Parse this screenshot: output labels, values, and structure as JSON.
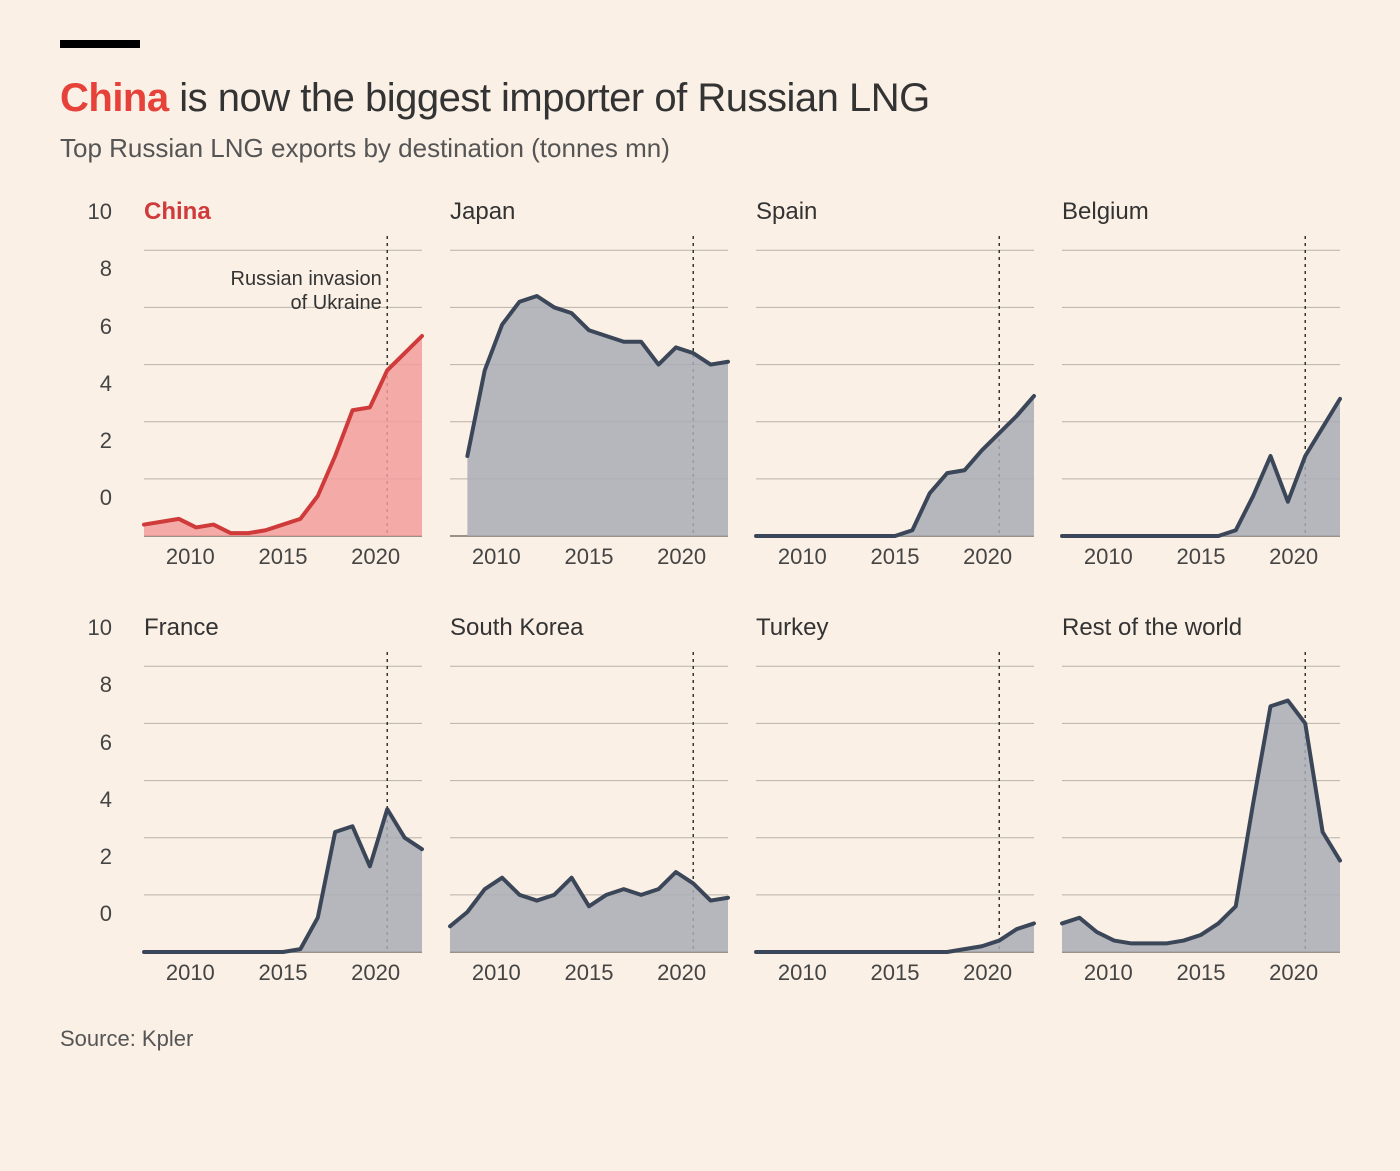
{
  "background_color": "#faf0e6",
  "topbar_color": "#000000",
  "title_highlight": "China",
  "title_rest": " is now the biggest importer of Russian LNG",
  "title_highlight_color": "#e6423a",
  "title_fontsize": 40,
  "subtitle": "Top Russian LNG exports by destination (tonnes mn)",
  "subtitle_fontsize": 26,
  "source_label": "Source: Kpler",
  "source_fontsize": 22,
  "axes": {
    "x_start": 2008,
    "x_end": 2024,
    "x_ticks": [
      2010,
      2015,
      2020
    ],
    "y_min": 0,
    "y_max": 10.5,
    "y_ticks": [
      0,
      2,
      4,
      6,
      8,
      10
    ],
    "grid_color": "#b8b2a8",
    "baseline_color": "#7a736a",
    "refline_year": 2022,
    "refline_color": "#333333"
  },
  "series_stroke_default": "#3b4658",
  "series_fill_default": "#a9adb5",
  "series_stroke_highlight": "#cf3a3a",
  "series_fill_highlight": "#f29e9b",
  "line_width": 4,
  "annotation": {
    "line1": "Russian invasion",
    "line2": "of Ukraine",
    "target_year": 2022
  },
  "panels": [
    {
      "name": "China",
      "highlight": true,
      "x": [
        2008,
        2009,
        2010,
        2011,
        2012,
        2013,
        2014,
        2015,
        2016,
        2017,
        2018,
        2019,
        2020,
        2021,
        2022,
        2023,
        2024
      ],
      "y": [
        0.4,
        0.5,
        0.6,
        0.3,
        0.4,
        0.1,
        0.1,
        0.2,
        0.4,
        0.6,
        1.4,
        2.8,
        4.4,
        4.5,
        5.8,
        6.4,
        7.0
      ]
    },
    {
      "name": "Japan",
      "highlight": false,
      "x": [
        2009,
        2010,
        2011,
        2012,
        2013,
        2014,
        2015,
        2016,
        2017,
        2018,
        2019,
        2020,
        2021,
        2022,
        2023,
        2024
      ],
      "y": [
        2.8,
        5.8,
        7.4,
        8.2,
        8.4,
        8.0,
        7.8,
        7.2,
        7.0,
        6.8,
        6.8,
        6.0,
        6.6,
        6.4,
        6.0,
        6.1
      ]
    },
    {
      "name": "Spain",
      "highlight": false,
      "x": [
        2008,
        2009,
        2010,
        2011,
        2012,
        2013,
        2014,
        2015,
        2016,
        2017,
        2018,
        2019,
        2020,
        2021,
        2022,
        2023,
        2024
      ],
      "y": [
        0,
        0,
        0,
        0,
        0,
        0,
        0,
        0,
        0,
        0.2,
        1.5,
        2.2,
        2.3,
        3.0,
        3.6,
        4.2,
        4.9
      ]
    },
    {
      "name": "Belgium",
      "highlight": false,
      "x": [
        2008,
        2009,
        2010,
        2011,
        2012,
        2013,
        2014,
        2015,
        2016,
        2017,
        2018,
        2019,
        2020,
        2021,
        2022,
        2023,
        2024
      ],
      "y": [
        0,
        0,
        0,
        0,
        0,
        0,
        0,
        0,
        0,
        0,
        0.2,
        1.4,
        2.8,
        1.2,
        2.8,
        3.8,
        4.8
      ]
    },
    {
      "name": "France",
      "highlight": false,
      "x": [
        2008,
        2009,
        2010,
        2011,
        2012,
        2013,
        2014,
        2015,
        2016,
        2017,
        2018,
        2019,
        2020,
        2021,
        2022,
        2023,
        2024
      ],
      "y": [
        0,
        0,
        0,
        0,
        0,
        0,
        0,
        0,
        0,
        0.1,
        1.2,
        4.2,
        4.4,
        3.0,
        5.0,
        4.0,
        3.6
      ]
    },
    {
      "name": "South Korea",
      "highlight": false,
      "x": [
        2008,
        2009,
        2010,
        2011,
        2012,
        2013,
        2014,
        2015,
        2016,
        2017,
        2018,
        2019,
        2020,
        2021,
        2022,
        2023,
        2024
      ],
      "y": [
        0.9,
        1.4,
        2.2,
        2.6,
        2.0,
        1.8,
        2.0,
        2.6,
        1.6,
        2.0,
        2.2,
        2.0,
        2.2,
        2.8,
        2.4,
        1.8,
        1.9
      ]
    },
    {
      "name": "Turkey",
      "highlight": false,
      "x": [
        2008,
        2009,
        2010,
        2011,
        2012,
        2013,
        2014,
        2015,
        2016,
        2017,
        2018,
        2019,
        2020,
        2021,
        2022,
        2023,
        2024
      ],
      "y": [
        0,
        0,
        0,
        0,
        0,
        0,
        0,
        0,
        0,
        0,
        0,
        0,
        0.1,
        0.2,
        0.4,
        0.8,
        1.0
      ]
    },
    {
      "name": "Rest of the world",
      "highlight": false,
      "x": [
        2008,
        2009,
        2010,
        2011,
        2012,
        2013,
        2014,
        2015,
        2016,
        2017,
        2018,
        2019,
        2020,
        2021,
        2022,
        2023,
        2024
      ],
      "y": [
        1.0,
        1.2,
        0.7,
        0.4,
        0.3,
        0.3,
        0.3,
        0.4,
        0.6,
        1.0,
        1.6,
        5.2,
        8.6,
        8.8,
        8.0,
        4.2,
        3.2
      ]
    }
  ]
}
